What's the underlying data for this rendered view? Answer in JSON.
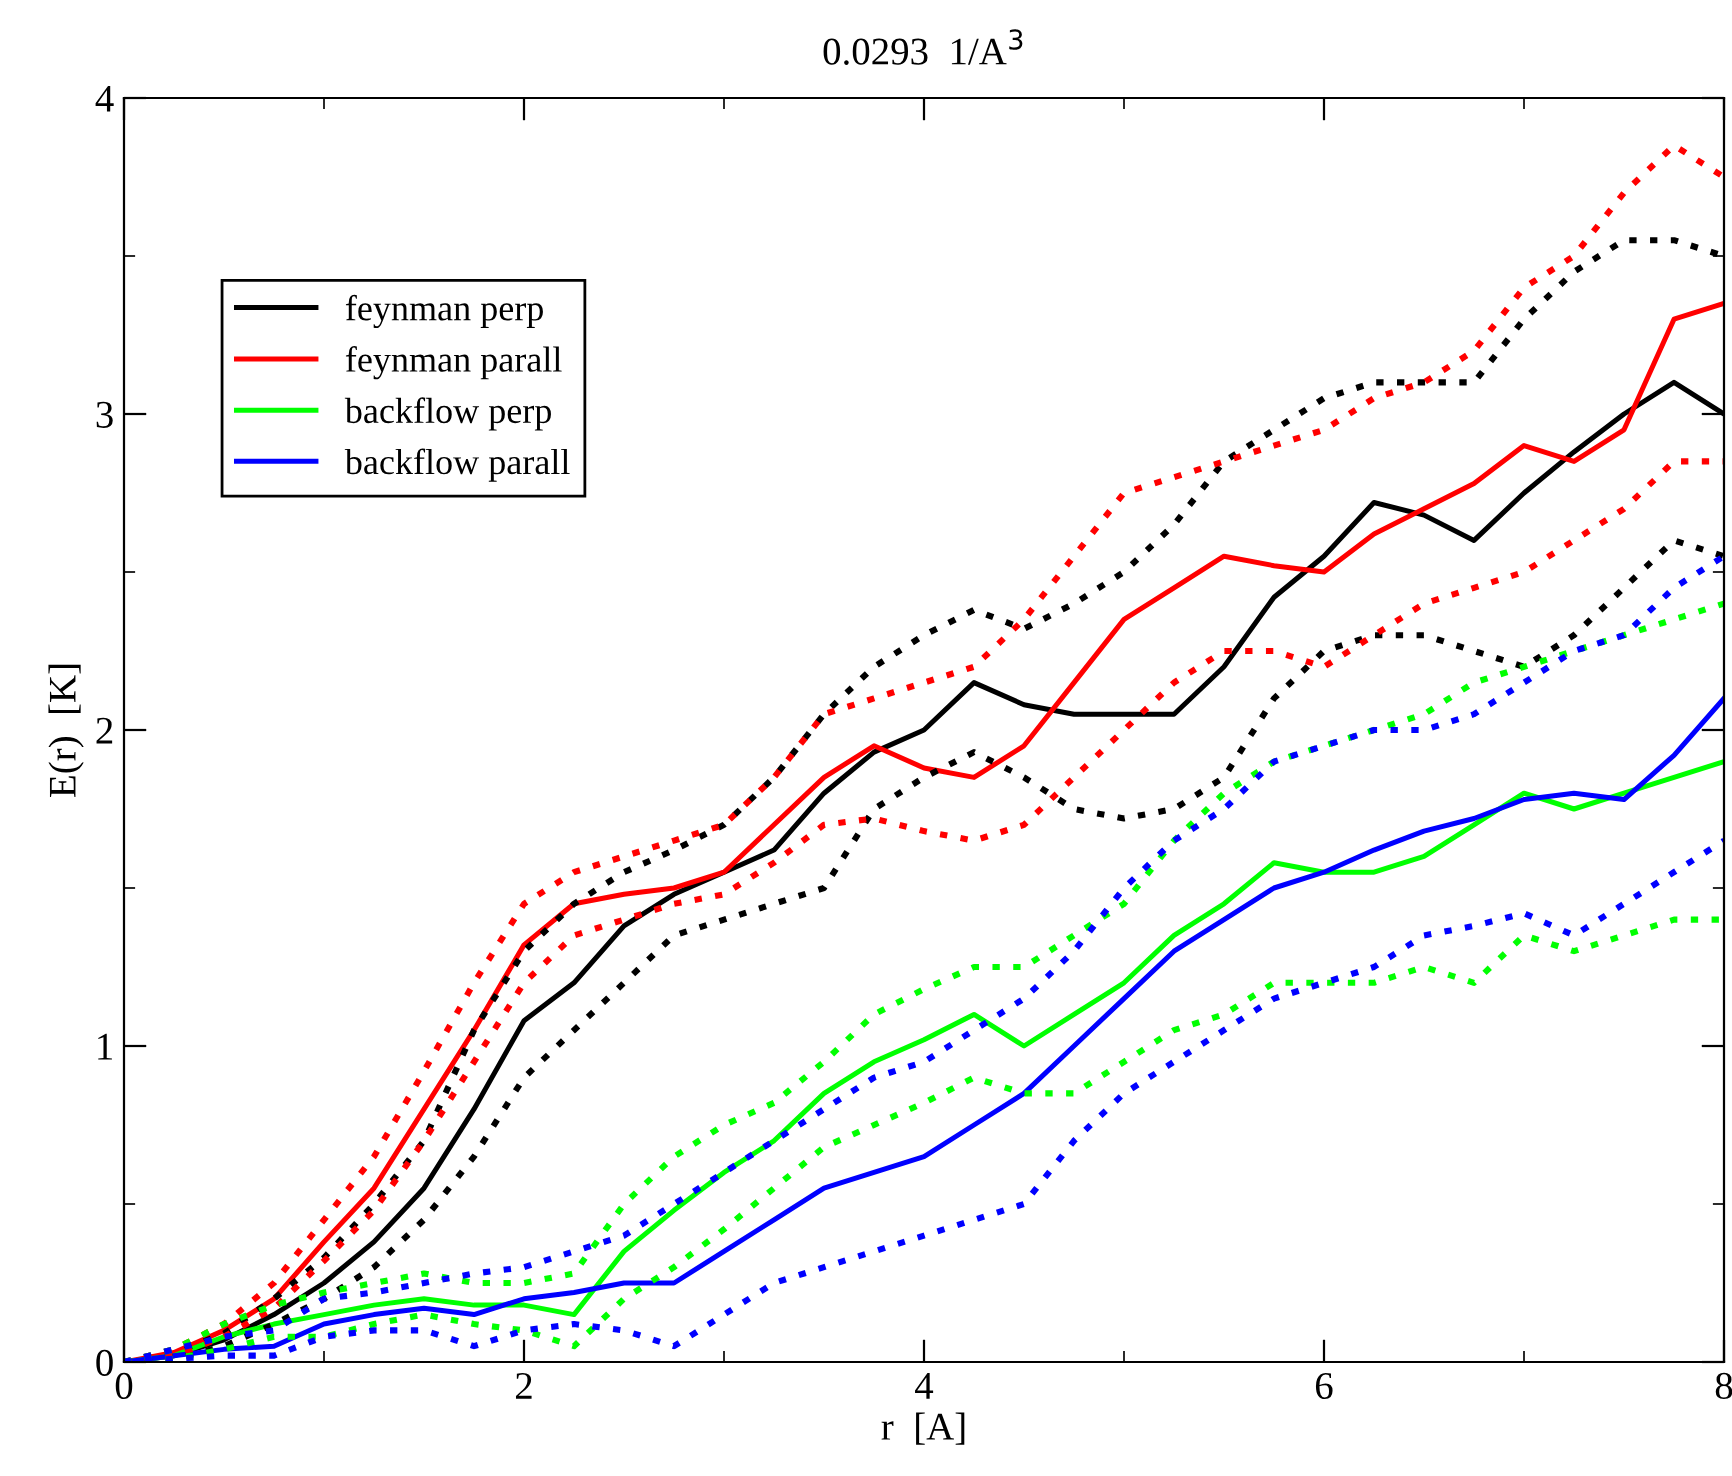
{
  "chart_data": {
    "type": "line",
    "title": "0.0293  1/A$^{3}$",
    "xlabel": "r  [A]",
    "ylabel": "E(r)  [K]",
    "x": [
      0,
      0.25,
      0.5,
      0.75,
      1,
      1.25,
      1.5,
      1.75,
      2,
      2.25,
      2.5,
      2.75,
      3,
      3.25,
      3.5,
      3.75,
      4,
      4.25,
      4.5,
      4.75,
      5,
      5.25,
      5.5,
      5.75,
      6,
      6.25,
      6.5,
      6.75,
      7,
      7.25,
      7.5,
      7.75,
      8
    ],
    "xlim": [
      0,
      8
    ],
    "ylim": [
      0,
      4
    ],
    "xticks": [
      0,
      2,
      4,
      6,
      8
    ],
    "yticks": [
      0,
      1,
      2,
      3,
      4
    ],
    "legend": "top left",
    "line_style": "solid",
    "marker": "none",
    "series": [
      {
        "name": "feynman perp",
        "color": "#000000",
        "values": [
          0,
          0.02,
          0.07,
          0.15,
          0.25,
          0.38,
          0.55,
          0.8,
          1.08,
          1.2,
          1.38,
          1.48,
          1.55,
          1.62,
          1.8,
          1.93,
          2.0,
          2.15,
          2.08,
          2.05,
          2.05,
          2.05,
          2.2,
          2.42,
          2.55,
          2.72,
          2.68,
          2.6,
          2.75,
          2.88,
          3.0,
          3.1,
          3.0
        ]
      },
      {
        "name": "feynman parall",
        "color": "#ff0000",
        "values": [
          0,
          0.03,
          0.1,
          0.2,
          0.38,
          0.55,
          0.8,
          1.05,
          1.32,
          1.45,
          1.48,
          1.5,
          1.55,
          1.7,
          1.85,
          1.95,
          1.88,
          1.85,
          1.95,
          2.15,
          2.35,
          2.45,
          2.55,
          2.52,
          2.5,
          2.62,
          2.7,
          2.78,
          2.9,
          2.85,
          2.95,
          3.3,
          3.35
        ]
      },
      {
        "name": "backflow perp",
        "color": "#00ff00",
        "values": [
          0,
          0.02,
          0.08,
          0.12,
          0.15,
          0.18,
          0.2,
          0.18,
          0.18,
          0.15,
          0.35,
          0.48,
          0.6,
          0.7,
          0.85,
          0.95,
          1.02,
          1.1,
          1.0,
          1.1,
          1.2,
          1.35,
          1.45,
          1.58,
          1.55,
          1.55,
          1.6,
          1.7,
          1.8,
          1.75,
          1.8,
          1.85,
          1.9
        ]
      },
      {
        "name": "backflow parall",
        "color": "#0000ff",
        "values": [
          0,
          0.02,
          0.04,
          0.05,
          0.12,
          0.15,
          0.17,
          0.15,
          0.2,
          0.22,
          0.25,
          0.25,
          0.35,
          0.45,
          0.55,
          0.6,
          0.65,
          0.75,
          0.85,
          1.0,
          1.15,
          1.3,
          1.4,
          1.5,
          1.55,
          1.62,
          1.68,
          1.72,
          1.78,
          1.8,
          1.78,
          1.92,
          2.1
        ]
      },
      {
        "color": "#000000",
        "line_style": "dotted",
        "values": [
          0,
          0.03,
          0.09,
          0.2,
          0.33,
          0.5,
          0.7,
          1.05,
          1.3,
          1.45,
          1.55,
          1.62,
          1.7,
          1.85,
          2.05,
          2.2,
          2.3,
          2.38,
          2.32,
          2.4,
          2.5,
          2.65,
          2.85,
          2.95,
          3.05,
          3.1,
          3.1,
          3.1,
          3.3,
          3.45,
          3.55,
          3.55,
          3.5
        ]
      },
      {
        "color": "#000000",
        "line_style": "dotted",
        "values": [
          0,
          0.01,
          0.05,
          0.12,
          0.2,
          0.3,
          0.45,
          0.65,
          0.9,
          1.05,
          1.2,
          1.35,
          1.4,
          1.45,
          1.5,
          1.75,
          1.85,
          1.93,
          1.85,
          1.75,
          1.72,
          1.75,
          1.85,
          2.1,
          2.25,
          2.3,
          2.3,
          2.25,
          2.2,
          2.3,
          2.45,
          2.6,
          2.55
        ]
      },
      {
        "color": "#ff0000",
        "line_style": "dotted",
        "values": [
          0,
          0.04,
          0.12,
          0.25,
          0.45,
          0.65,
          0.92,
          1.2,
          1.45,
          1.55,
          1.6,
          1.65,
          1.7,
          1.85,
          2.05,
          2.1,
          2.15,
          2.2,
          2.35,
          2.55,
          2.75,
          2.8,
          2.85,
          2.9,
          2.95,
          3.05,
          3.1,
          3.2,
          3.4,
          3.5,
          3.7,
          3.85,
          3.75
        ]
      },
      {
        "color": "#ff0000",
        "line_style": "dotted",
        "values": [
          0,
          0.02,
          0.08,
          0.17,
          0.32,
          0.48,
          0.7,
          0.95,
          1.2,
          1.35,
          1.4,
          1.45,
          1.48,
          1.58,
          1.7,
          1.72,
          1.68,
          1.65,
          1.7,
          1.85,
          2.0,
          2.15,
          2.25,
          2.25,
          2.2,
          2.3,
          2.4,
          2.45,
          2.5,
          2.6,
          2.7,
          2.85,
          2.85
        ]
      },
      {
        "color": "#00ff00",
        "line_style": "dotted",
        "values": [
          0,
          0.04,
          0.12,
          0.18,
          0.22,
          0.25,
          0.28,
          0.25,
          0.25,
          0.28,
          0.5,
          0.65,
          0.75,
          0.82,
          0.95,
          1.1,
          1.18,
          1.25,
          1.25,
          1.35,
          1.45,
          1.65,
          1.8,
          1.9,
          1.95,
          2.0,
          2.05,
          2.15,
          2.2,
          2.25,
          2.3,
          2.35,
          2.4
        ]
      },
      {
        "color": "#00ff00",
        "line_style": "dotted",
        "values": [
          0,
          0.01,
          0.04,
          0.08,
          0.08,
          0.12,
          0.15,
          0.12,
          0.1,
          0.05,
          0.2,
          0.3,
          0.42,
          0.55,
          0.68,
          0.75,
          0.82,
          0.9,
          0.85,
          0.85,
          0.95,
          1.05,
          1.1,
          1.2,
          1.2,
          1.2,
          1.25,
          1.2,
          1.35,
          1.3,
          1.35,
          1.4,
          1.4
        ]
      },
      {
        "color": "#0000ff",
        "line_style": "dotted",
        "values": [
          0,
          0.04,
          0.08,
          0.1,
          0.2,
          0.22,
          0.25,
          0.28,
          0.3,
          0.35,
          0.4,
          0.5,
          0.6,
          0.7,
          0.8,
          0.9,
          0.95,
          1.05,
          1.15,
          1.3,
          1.5,
          1.65,
          1.75,
          1.9,
          1.95,
          2.0,
          2.0,
          2.05,
          2.15,
          2.25,
          2.3,
          2.45,
          2.55
        ]
      },
      {
        "color": "#0000ff",
        "line_style": "dotted",
        "values": [
          0,
          0.01,
          0.02,
          0.02,
          0.08,
          0.1,
          0.1,
          0.05,
          0.1,
          0.12,
          0.1,
          0.05,
          0.15,
          0.25,
          0.3,
          0.35,
          0.4,
          0.45,
          0.5,
          0.7,
          0.85,
          0.95,
          1.05,
          1.15,
          1.2,
          1.25,
          1.35,
          1.38,
          1.42,
          1.35,
          1.45,
          1.55,
          1.65
        ]
      }
    ]
  }
}
